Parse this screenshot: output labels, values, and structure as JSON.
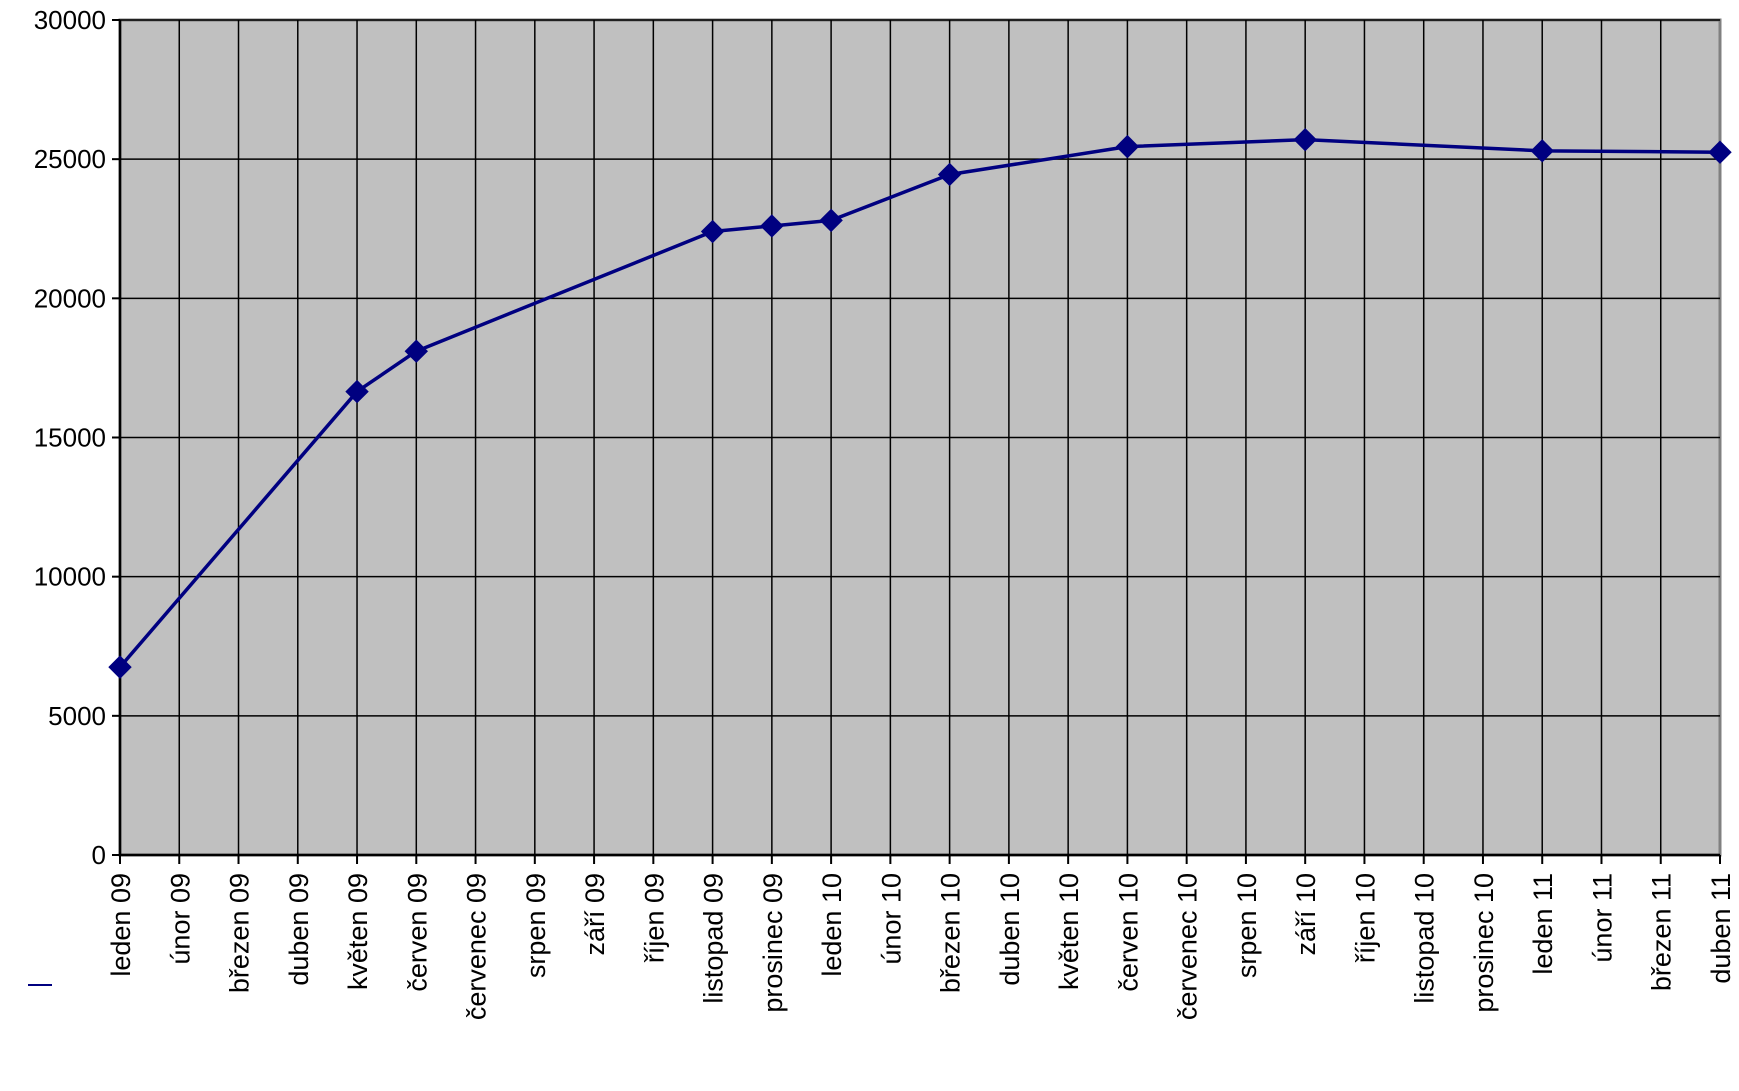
{
  "chart_data": {
    "type": "line",
    "title": "",
    "xlabel": "",
    "ylabel": "",
    "ylim": [
      0,
      30000
    ],
    "yticks": [
      0,
      5000,
      10000,
      15000,
      20000,
      25000,
      30000
    ],
    "ytick_labels": [
      "0",
      "5000",
      "10000",
      "15000",
      "20000",
      "25000",
      "30000"
    ],
    "grid": true,
    "legend": "none",
    "colors": {
      "plot_bg": "#c0c0c0",
      "line": "#000080",
      "grid": "#000000"
    },
    "categories": [
      "leden 09",
      "únor 09",
      "březen 09",
      "duben 09",
      "květen 09",
      "červen 09",
      "červenec 09",
      "srpen 09",
      "září 09",
      "říjen 09",
      "listopad 09",
      "prosinec 09",
      "leden 10",
      "únor 10",
      "březen 10",
      "duben 10",
      "květen 10",
      "červen 10",
      "červenec 10",
      "srpen 10",
      "září 10",
      "říjen 10",
      "listopad 10",
      "prosinec 10",
      "leden 11",
      "únor 11",
      "březen 11",
      "duben 11"
    ],
    "series": [
      {
        "points": [
          {
            "x": "leden 09",
            "y": 6750
          },
          {
            "x": "květen 09",
            "y": 16650
          },
          {
            "x": "červen 09",
            "y": 18100
          },
          {
            "x": "listopad 09",
            "y": 22400
          },
          {
            "x": "prosinec 09",
            "y": 22600
          },
          {
            "x": "leden 10",
            "y": 22800
          },
          {
            "x": "březen 10",
            "y": 24450
          },
          {
            "x": "červen 10",
            "y": 25450
          },
          {
            "x": "září 10",
            "y": 25700
          },
          {
            "x": "leden 11",
            "y": 25300
          },
          {
            "x": "duben 11",
            "y": 25250
          }
        ]
      }
    ]
  }
}
